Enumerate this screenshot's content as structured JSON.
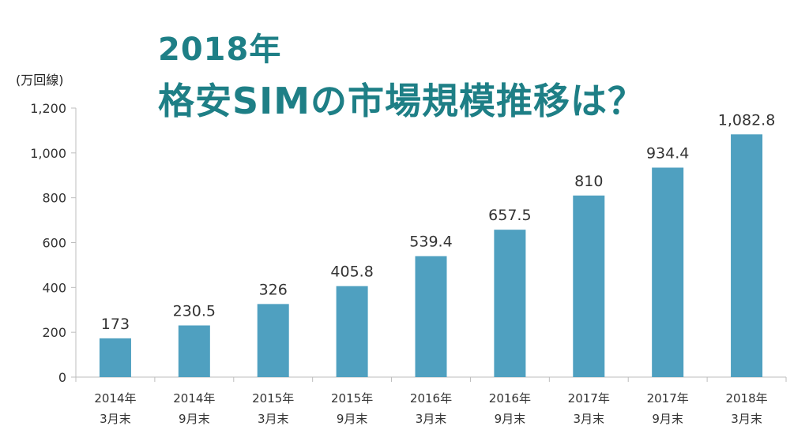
{
  "title": {
    "line1": "2018年",
    "line2": "格安SIMの市場規模推移は？"
  },
  "colors": {
    "bar": "#4fa0c0",
    "title": "#1e7f86",
    "axis": "#bdbdbd"
  },
  "chart_data": {
    "type": "bar",
    "unit": "(万回線)",
    "categories": [
      [
        "2014年",
        "3月末"
      ],
      [
        "2014年",
        "9月末"
      ],
      [
        "2015年",
        "3月末"
      ],
      [
        "2015年",
        "9月末"
      ],
      [
        "2016年",
        "3月末"
      ],
      [
        "2016年",
        "9月末"
      ],
      [
        "2017年",
        "3月末"
      ],
      [
        "2017年",
        "9月末"
      ],
      [
        "2018年",
        "3月末"
      ]
    ],
    "values": [
      173,
      230.5,
      326,
      405.8,
      539.4,
      657.5,
      810,
      934.4,
      1082.8
    ],
    "data_labels": [
      "173",
      "230.5",
      "326",
      "405.8",
      "539.4",
      "657.5",
      "810",
      "934.4",
      "1,082.8"
    ],
    "yticks": [
      0,
      200,
      400,
      600,
      800,
      1000,
      1200
    ],
    "ytick_labels": [
      "0",
      "200",
      "400",
      "600",
      "800",
      "1,000",
      "1,200"
    ],
    "ylim": [
      0,
      1200
    ],
    "grid": false,
    "legend": "none"
  }
}
